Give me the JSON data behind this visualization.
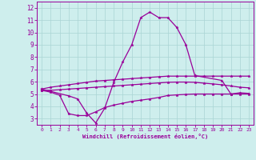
{
  "xlabel": "Windchill (Refroidissement éolien,°C)",
  "bg_color": "#ceeeed",
  "line_color": "#990099",
  "grid_color": "#aad4d4",
  "xlim": [
    -0.5,
    23.5
  ],
  "ylim": [
    2.5,
    12.5
  ],
  "yticks": [
    3,
    4,
    5,
    6,
    7,
    8,
    9,
    10,
    11,
    12
  ],
  "xticks": [
    0,
    1,
    2,
    3,
    4,
    5,
    6,
    7,
    8,
    9,
    10,
    11,
    12,
    13,
    14,
    15,
    16,
    17,
    18,
    19,
    20,
    21,
    22,
    23
  ],
  "line1_x": [
    0,
    1,
    2,
    3,
    4,
    5,
    6,
    7,
    8,
    9,
    10,
    11,
    12,
    13,
    14,
    15,
    16,
    17,
    18,
    19,
    20,
    21,
    22,
    23
  ],
  "line1_y": [
    5.4,
    5.55,
    5.65,
    5.75,
    5.85,
    5.95,
    6.05,
    6.1,
    6.15,
    6.2,
    6.25,
    6.3,
    6.35,
    6.4,
    6.45,
    6.45,
    6.45,
    6.45,
    6.45,
    6.45,
    6.45,
    6.45,
    6.45,
    6.45
  ],
  "line2_x": [
    0,
    3,
    4,
    5,
    6,
    7,
    8,
    9,
    10,
    11,
    12,
    13,
    14,
    15,
    16,
    17,
    20,
    21,
    22,
    23
  ],
  "line2_y": [
    5.4,
    4.85,
    4.6,
    3.45,
    2.65,
    3.85,
    5.95,
    7.6,
    9.0,
    11.2,
    11.65,
    11.2,
    11.2,
    10.4,
    9.0,
    6.5,
    6.1,
    5.0,
    5.1,
    5.05
  ],
  "line3_x": [
    0,
    1,
    2,
    3,
    4,
    5,
    6,
    7,
    8,
    9,
    10,
    11,
    12,
    13,
    14,
    15,
    16,
    17,
    18,
    19,
    20,
    21,
    22,
    23
  ],
  "line3_y": [
    5.3,
    5.3,
    5.35,
    5.4,
    5.45,
    5.5,
    5.55,
    5.6,
    5.65,
    5.7,
    5.75,
    5.8,
    5.85,
    5.9,
    5.95,
    5.97,
    5.97,
    5.95,
    5.88,
    5.82,
    5.75,
    5.65,
    5.55,
    5.5
  ],
  "line4_x": [
    0,
    1,
    2,
    3,
    4,
    5,
    6,
    7,
    8,
    9,
    10,
    11,
    12,
    13,
    14,
    15,
    16,
    17,
    18,
    19,
    20,
    21,
    22,
    23
  ],
  "line4_y": [
    5.3,
    5.15,
    4.9,
    3.4,
    3.25,
    3.25,
    3.55,
    3.9,
    4.1,
    4.25,
    4.4,
    4.5,
    4.6,
    4.72,
    4.88,
    4.93,
    4.97,
    5.0,
    5.0,
    5.0,
    5.0,
    5.0,
    5.0,
    5.0
  ]
}
